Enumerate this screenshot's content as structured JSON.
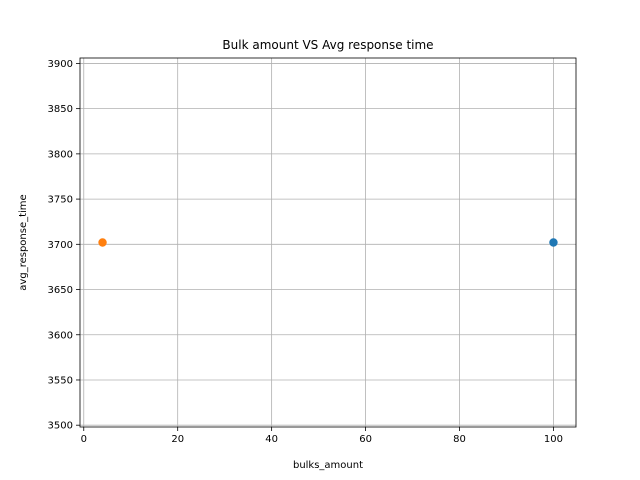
{
  "chart_data": {
    "type": "scatter",
    "title": "Bulk amount VS Avg response time",
    "xlabel": "bulks_amount",
    "ylabel": "avg_response_time",
    "xlim": [
      -0.8,
      104.8
    ],
    "ylim": [
      3498,
      3906
    ],
    "xticks": [
      0,
      20,
      40,
      60,
      80,
      100
    ],
    "yticks": [
      3500,
      3550,
      3600,
      3650,
      3700,
      3750,
      3800,
      3850,
      3900
    ],
    "grid": true,
    "series": [
      {
        "color": "#1f77b4",
        "points": [
          {
            "x": 100,
            "y": 3702
          }
        ]
      },
      {
        "color": "#ff7f0e",
        "points": [
          {
            "x": 4,
            "y": 3702
          }
        ]
      }
    ]
  }
}
